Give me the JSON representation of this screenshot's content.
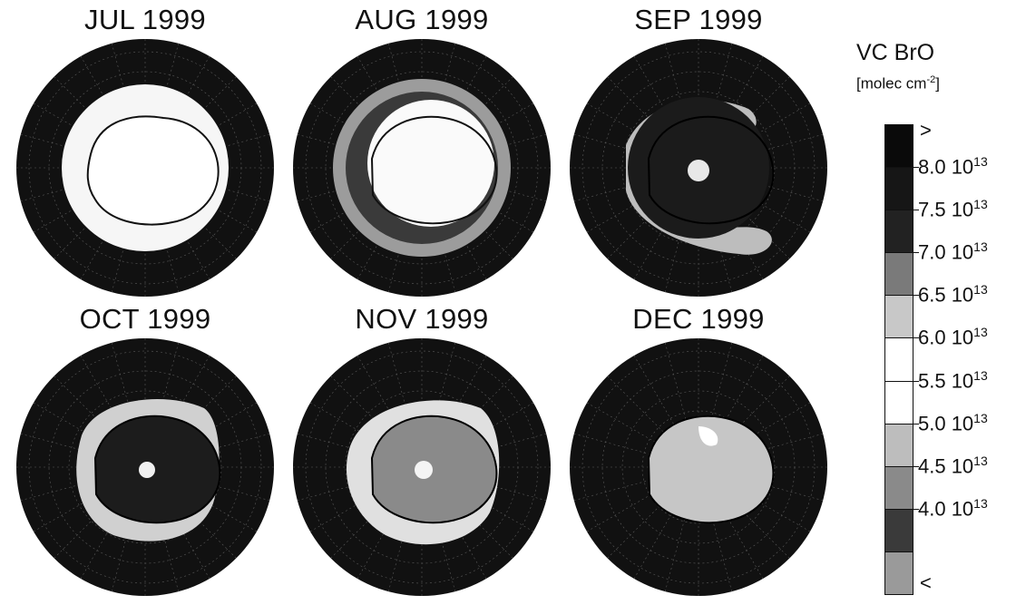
{
  "panels": [
    {
      "title": "JUL 1999"
    },
    {
      "title": "AUG 1999"
    },
    {
      "title": "SEP 1999"
    },
    {
      "title": "OCT 1999"
    },
    {
      "title": "NOV 1999"
    },
    {
      "title": "DEC 1999"
    }
  ],
  "legend": {
    "title": "VC BrO",
    "unit_prefix": "[molec cm",
    "unit_exp": "-2",
    "unit_suffix": "]",
    "above_glyph": ">",
    "below_glyph": "<",
    "levels": [
      {
        "mant": "8.0 10",
        "exp": "13"
      },
      {
        "mant": "7.5 10",
        "exp": "13"
      },
      {
        "mant": "7.0 10",
        "exp": "13"
      },
      {
        "mant": "6.5 10",
        "exp": "13"
      },
      {
        "mant": "6.0 10",
        "exp": "13"
      },
      {
        "mant": "5.5 10",
        "exp": "13"
      },
      {
        "mant": "5.0 10",
        "exp": "13"
      },
      {
        "mant": "4.5 10",
        "exp": "13"
      },
      {
        "mant": "4.0 10",
        "exp": "13"
      }
    ],
    "colors": [
      "#0a0a0a",
      "#161616",
      "#222222",
      "#7a7a7a",
      "#c8c8c8",
      "#ffffff",
      "#ffffff",
      "#bdbdbd",
      "#8a8a8a",
      "#3a3a3a",
      "#9a9a9a"
    ]
  }
}
